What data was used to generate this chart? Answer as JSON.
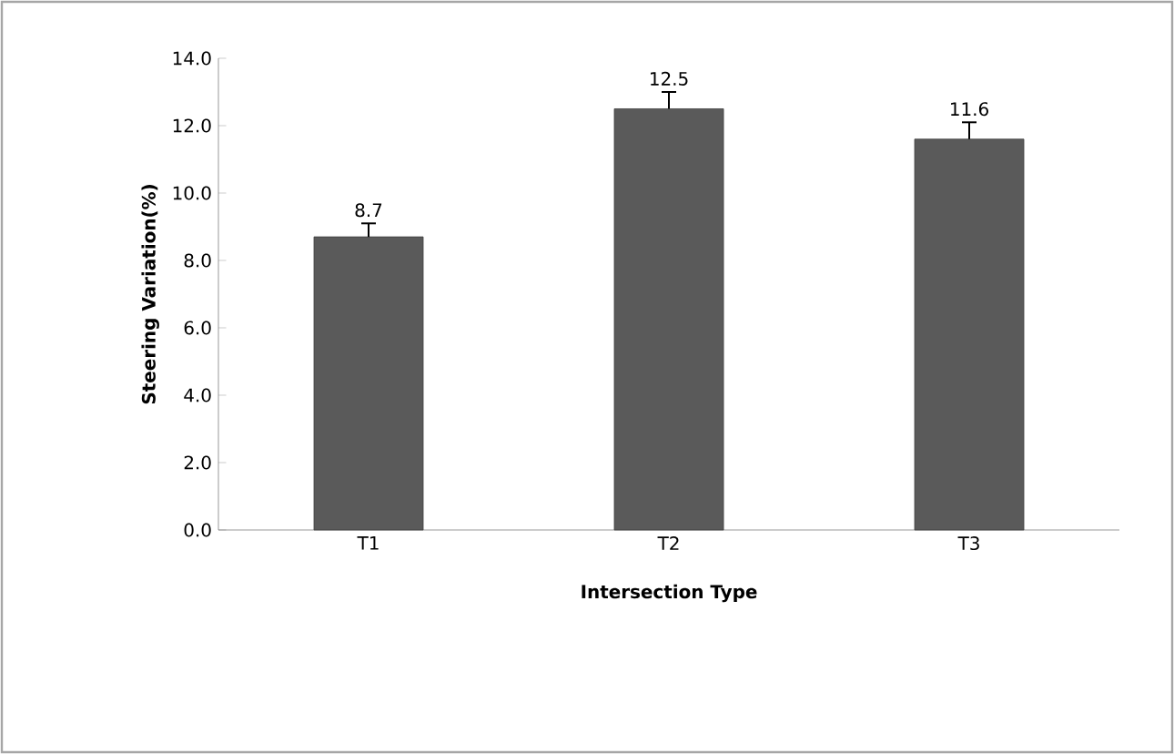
{
  "chart_data": {
    "type": "bar",
    "xlabel": "Intersection Type",
    "ylabel": "Steering Variation(%)",
    "categories": [
      "T1",
      "T2",
      "T3"
    ],
    "values": [
      8.7,
      12.5,
      11.6
    ],
    "errors": [
      0.4,
      0.5,
      0.5
    ],
    "color": "#5a5a5a",
    "data_labels": true,
    "ylim": [
      0,
      14
    ],
    "yticks": [
      {
        "value": 0,
        "label": "0.0"
      },
      {
        "value": 2,
        "label": "2.0"
      },
      {
        "value": 4,
        "label": "4.0"
      },
      {
        "value": 6,
        "label": "6.0"
      },
      {
        "value": 8,
        "label": "8.0"
      },
      {
        "value": 10,
        "label": "10.0"
      },
      {
        "value": 12,
        "label": "12.0"
      },
      {
        "value": 14,
        "label": "14.0"
      }
    ]
  }
}
